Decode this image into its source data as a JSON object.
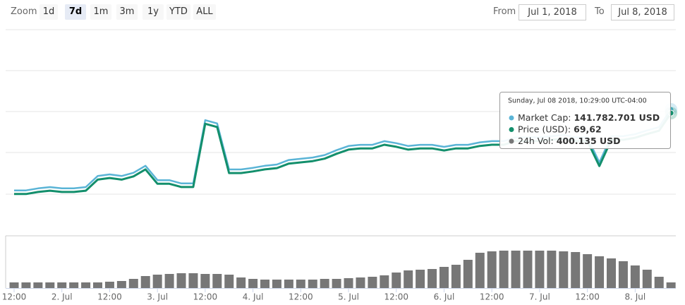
{
  "controls": {
    "zoom_label": "Zoom",
    "buttons": [
      "1d",
      "7d",
      "1m",
      "3m",
      "1y",
      "YTD",
      "ALL"
    ],
    "selected": 1,
    "from_label": "From",
    "from": "Jul 1, 2018",
    "to_label": "To",
    "to": "Jul 8, 2018"
  },
  "chart_data": {
    "type": "line",
    "grid": true,
    "categories": [
      "12:00",
      null,
      null,
      null,
      "2. Jul",
      null,
      null,
      null,
      "12:00",
      null,
      null,
      null,
      "3. Jul",
      null,
      null,
      null,
      "12:00",
      null,
      null,
      null,
      "4. Jul",
      null,
      null,
      null,
      "12:00",
      null,
      null,
      null,
      "5. Jul",
      null,
      null,
      null,
      "12:00",
      null,
      null,
      null,
      "6. Jul",
      null,
      null,
      null,
      "12:00",
      null,
      null,
      null,
      "7. Jul",
      null,
      null,
      null,
      "12:00",
      null,
      null,
      null,
      "8. Jul",
      null,
      null,
      null
    ],
    "ylim": [
      66.65,
      71.65
    ],
    "y2lim": [
      135554000,
      145737000
    ],
    "y3lim": [
      0,
      3400000
    ],
    "series": [
      {
        "color": "#5ab4d6",
        "axis": "y2",
        "values": [
          137769000,
          137769000,
          137871000,
          137932000,
          137871000,
          137871000,
          137932000,
          138482000,
          138563000,
          138482000,
          138645000,
          138991000,
          138278000,
          138278000,
          138115000,
          138115000,
          141252000,
          141089000,
          138808000,
          138808000,
          138889000,
          138991000,
          139052000,
          139276000,
          139337000,
          139398000,
          139521000,
          139765000,
          139969000,
          140030000,
          140030000,
          140213000,
          140111000,
          139969000,
          140030000,
          140030000,
          139928000,
          140030000,
          140030000,
          140152000,
          140213000,
          140213000,
          140396000,
          140396000,
          140396000,
          140457000,
          140519000,
          140396000,
          140396000,
          139154000,
          140457000,
          140457000,
          140559000,
          140743000,
          140905000,
          141782701
        ]
      },
      {
        "color": "#138f6c",
        "values": [
          67.65,
          67.65,
          67.7,
          67.73,
          67.7,
          67.7,
          67.73,
          68.0,
          68.04,
          68.0,
          68.08,
          68.25,
          67.9,
          67.9,
          67.82,
          67.82,
          69.36,
          69.28,
          68.16,
          68.16,
          68.2,
          68.25,
          68.28,
          68.39,
          68.42,
          68.45,
          68.51,
          68.63,
          68.73,
          68.76,
          68.76,
          68.85,
          68.8,
          68.73,
          68.76,
          68.76,
          68.71,
          68.76,
          68.76,
          68.82,
          68.85,
          68.85,
          68.94,
          68.94,
          68.94,
          68.97,
          69.0,
          68.94,
          68.94,
          68.33,
          68.97,
          68.97,
          69.02,
          69.11,
          69.19,
          69.62
        ]
      },
      {
        "color": "#777777",
        "type": "bar",
        "axis": "y3",
        "values": [
          400000,
          400000,
          400000,
          400000,
          400000,
          400000,
          400000,
          400000,
          450000,
          500000,
          650000,
          850000,
          950000,
          1000000,
          1050000,
          1050000,
          1000000,
          1000000,
          950000,
          750000,
          650000,
          600000,
          600000,
          600000,
          600000,
          600000,
          650000,
          650000,
          700000,
          750000,
          800000,
          900000,
          1100000,
          1250000,
          1300000,
          1350000,
          1500000,
          1650000,
          2000000,
          2500000,
          2600000,
          2650000,
          2650000,
          2650000,
          2650000,
          2650000,
          2600000,
          2550000,
          2400000,
          2250000,
          2100000,
          1900000,
          1600000,
          1300000,
          800000,
          400135
        ]
      }
    ],
    "tooltip": {
      "header": "Sunday, Jul 08 2018, 10:29:00 UTC-04:00",
      "rows": [
        {
          "label": "Market Cap:",
          "value": "141.782.701 USD"
        },
        {
          "label": "Price (USD):",
          "value": "69,62"
        },
        {
          "label": "24h Vol:",
          "value": "400.135 USD"
        }
      ]
    }
  }
}
